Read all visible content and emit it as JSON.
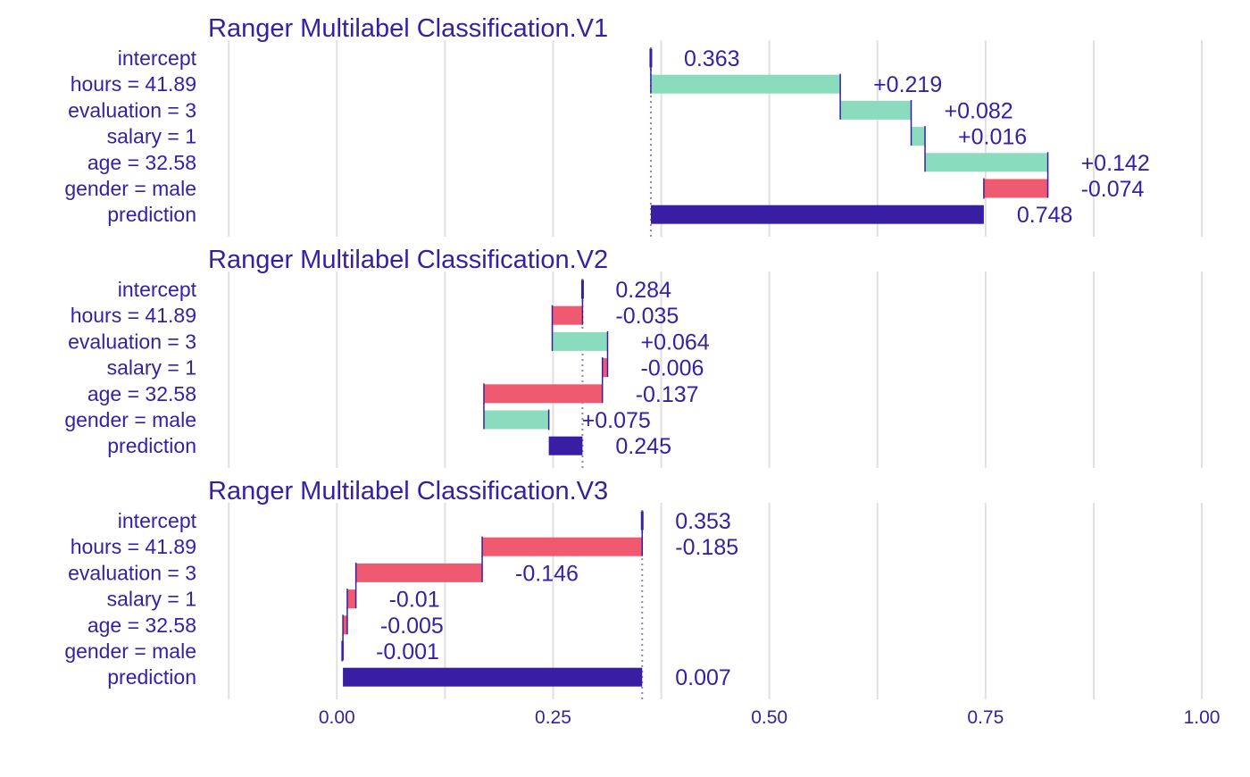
{
  "colors": {
    "positive": "#8bdcbe",
    "negative": "#f05a71",
    "prediction": "#371ea3",
    "text": "#371ea3",
    "grid": "#e0e0e0",
    "connector": "#371ea3",
    "ref_line": "#8a83c2"
  },
  "chart_data": {
    "type": "bar",
    "xlim": [
      -0.15,
      1.0
    ],
    "x_ticks": [
      0.0,
      0.25,
      0.5,
      0.75,
      1.0
    ],
    "x_tick_labels": [
      "0.00",
      "0.25",
      "0.50",
      "0.75",
      "1.00"
    ],
    "grid": true,
    "features": [
      "intercept",
      "hours = 41.89",
      "evaluation = 3",
      "salary = 1",
      "age = 32.58",
      "gender = male",
      "prediction"
    ],
    "panels": [
      {
        "title": "Ranger Multilabel Classification.V1",
        "bars": [
          {
            "feature": "intercept",
            "start": 0.363,
            "end": 0.363,
            "label": "0.363",
            "kind": "intercept"
          },
          {
            "feature": "hours = 41.89",
            "start": 0.363,
            "end": 0.582,
            "label": "+0.219",
            "kind": "positive"
          },
          {
            "feature": "evaluation = 3",
            "start": 0.582,
            "end": 0.664,
            "label": "+0.082",
            "kind": "positive"
          },
          {
            "feature": "salary = 1",
            "start": 0.664,
            "end": 0.68,
            "label": "+0.016",
            "kind": "positive"
          },
          {
            "feature": "age = 32.58",
            "start": 0.68,
            "end": 0.822,
            "label": "+0.142",
            "kind": "positive"
          },
          {
            "feature": "gender = male",
            "start": 0.822,
            "end": 0.748,
            "label": "-0.074",
            "kind": "negative"
          },
          {
            "feature": "prediction",
            "start": 0.363,
            "end": 0.748,
            "label": "0.748",
            "kind": "prediction"
          }
        ],
        "intercept": 0.363
      },
      {
        "title": "Ranger Multilabel Classification.V2",
        "bars": [
          {
            "feature": "intercept",
            "start": 0.284,
            "end": 0.284,
            "label": "0.284",
            "kind": "intercept"
          },
          {
            "feature": "hours = 41.89",
            "start": 0.284,
            "end": 0.249,
            "label": "-0.035",
            "kind": "negative"
          },
          {
            "feature": "evaluation = 3",
            "start": 0.249,
            "end": 0.313,
            "label": "+0.064",
            "kind": "positive"
          },
          {
            "feature": "salary = 1",
            "start": 0.313,
            "end": 0.307,
            "label": "-0.006",
            "kind": "negative"
          },
          {
            "feature": "age = 32.58",
            "start": 0.307,
            "end": 0.17,
            "label": "-0.137",
            "kind": "negative"
          },
          {
            "feature": "gender = male",
            "start": 0.17,
            "end": 0.245,
            "label": "+0.075",
            "kind": "positive"
          },
          {
            "feature": "prediction",
            "start": 0.284,
            "end": 0.245,
            "label": "0.245",
            "kind": "prediction"
          }
        ],
        "intercept": 0.284
      },
      {
        "title": "Ranger Multilabel Classification.V3",
        "bars": [
          {
            "feature": "intercept",
            "start": 0.353,
            "end": 0.353,
            "label": "0.353",
            "kind": "intercept"
          },
          {
            "feature": "hours = 41.89",
            "start": 0.353,
            "end": 0.168,
            "label": "-0.185",
            "kind": "negative"
          },
          {
            "feature": "evaluation = 3",
            "start": 0.168,
            "end": 0.022,
            "label": "-0.146",
            "kind": "negative"
          },
          {
            "feature": "salary = 1",
            "start": 0.022,
            "end": 0.012,
            "label": "-0.01",
            "kind": "negative"
          },
          {
            "feature": "age = 32.58",
            "start": 0.012,
            "end": 0.007,
            "label": "-0.005",
            "kind": "negative"
          },
          {
            "feature": "gender = male",
            "start": 0.007,
            "end": 0.006,
            "label": "-0.001",
            "kind": "negative"
          },
          {
            "feature": "prediction",
            "start": 0.353,
            "end": 0.007,
            "label": "0.007",
            "kind": "prediction"
          }
        ],
        "intercept": 0.353
      }
    ]
  }
}
